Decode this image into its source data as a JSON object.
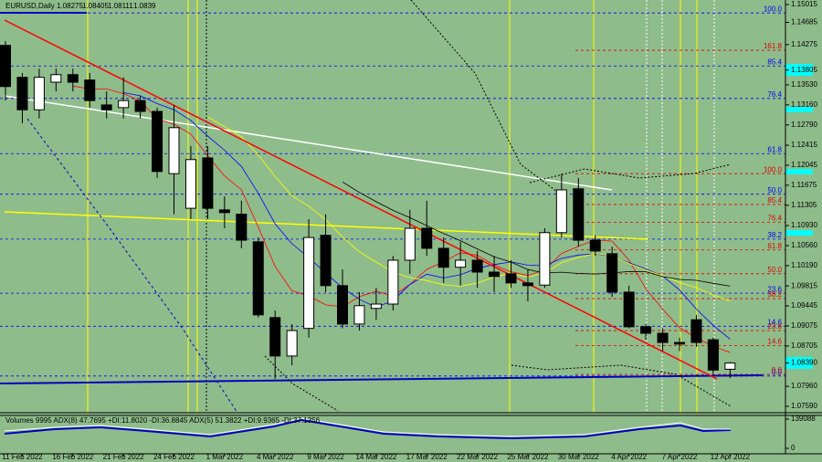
{
  "chart_data": [
    {
      "type": "candlestick",
      "title": "EURUSD,Daily",
      "categories": [
        null,
        "11 Feb 2022",
        null,
        null,
        "16 Feb 2022",
        null,
        null,
        "21 Feb 2022",
        null,
        null,
        "24 Feb 2022",
        null,
        null,
        "1 Mar 2022",
        null,
        null,
        "4 Mar 2022",
        null,
        null,
        "9 Mar 2022",
        null,
        null,
        "14 Mar 2022",
        null,
        null,
        "17 Mar 2022",
        null,
        null,
        "22 Mar 2022",
        null,
        null,
        "25 Mar 2022",
        null,
        null,
        "30 Mar 2022",
        null,
        null,
        "4 Apr 2022",
        null,
        null,
        "7 Apr 2022",
        null,
        null,
        "12 Apr 2022"
      ],
      "open": [
        1.1426,
        1.1367,
        1.1307,
        1.1358,
        1.1372,
        1.1362,
        1.1316,
        1.1311,
        1.1324,
        1.1304,
        1.1189,
        1.1125,
        1.1218,
        1.1122,
        1.1114,
        1.1063,
        1.0923,
        1.0852,
        1.0903,
        1.1075,
        1.0982,
        1.0911,
        1.094,
        1.0948,
        1.1029,
        1.1088,
        1.1051,
        1.1016,
        1.1029,
        1.1007,
        1.1004,
        1.0987,
        1.0983,
        1.108,
        1.1161,
        1.1066,
        1.1041,
        1.097,
        1.0906,
        1.0894,
        1.0877,
        1.0919,
        1.0882,
        1.08275
      ],
      "high": [
        1.1434,
        1.1375,
        1.1383,
        1.1383,
        1.1383,
        1.1375,
        1.1341,
        1.1367,
        1.1333,
        1.1311,
        1.1316,
        1.124,
        1.124,
        1.1147,
        1.1139,
        1.1071,
        1.0936,
        1.0911,
        1.1105,
        1.1114,
        1.1012,
        1.097,
        1.0978,
        1.1037,
        1.1122,
        1.1139,
        1.1071,
        1.1063,
        1.1046,
        1.1037,
        1.1029,
        1.1012,
        1.1088,
        1.1189,
        1.1181,
        1.1075,
        1.1054,
        1.0982,
        1.0911,
        1.0903,
        1.0886,
        1.0928,
        1.0886,
        1.08405
      ],
      "low": [
        1.1324,
        1.1282,
        1.1291,
        1.1341,
        1.1341,
        1.1311,
        1.1291,
        1.1291,
        1.1291,
        1.1181,
        1.1114,
        1.1105,
        1.1105,
        1.1088,
        1.1051,
        1.0923,
        1.081,
        1.0835,
        1.0886,
        1.097,
        1.0903,
        1.0899,
        1.0919,
        1.0936,
        1.1004,
        1.1037,
        1.0987,
        1.0982,
        1.0978,
        1.097,
        1.0978,
        1.0953,
        1.0978,
        1.1071,
        1.1054,
        1.1037,
        1.0961,
        1.0903,
        1.0882,
        1.0861,
        1.0861,
        1.0869,
        1.0818,
        1.08111
      ],
      "close": [
        1.135,
        1.1307,
        1.1367,
        1.1372,
        1.1358,
        1.1324,
        1.1307,
        1.1324,
        1.1304,
        1.1193,
        1.1274,
        1.1215,
        1.1125,
        1.1117,
        1.1066,
        1.0928,
        1.0852,
        1.0899,
        1.1071,
        1.0982,
        1.0911,
        1.0945,
        1.0948,
        1.1029,
        1.1088,
        1.1051,
        1.1016,
        1.1029,
        1.1007,
        1.0999,
        1.0987,
        1.0982,
        1.108,
        1.1159,
        1.1066,
        1.1046,
        1.097,
        1.0906,
        1.0894,
        1.0877,
        1.0874,
        1.0877,
        1.0826,
        1.0839
      ],
      "ylim": [
        1.07472,
        1.15099
      ],
      "yticks": [
        1.15015,
        1.14685,
        1.14275,
        1.13805,
        {
          "value": 1.1353,
          "label": "1.13530"
        },
        {
          "value": 1.1316,
          "label": "1.13160"
        },
        {
          "value": 1.1279,
          "label": "1.12790"
        },
        1.12415,
        1.12045,
        1.11675,
        1.11305,
        {
          "value": 1.1093,
          "label": "1.10930"
        },
        {
          "value": 1.1056,
          "label": "1.10560"
        },
        {
          "value": 1.1019,
          "label": "1.10190"
        },
        1.09815,
        1.09445,
        1.09075,
        1.08705,
        {
          "value": 1.0839,
          "label": "1.08390"
        },
        {
          "value": 1.0796,
          "label": "1.07960"
        },
        {
          "value": 1.0759,
          "label": "1.07590"
        }
      ],
      "fib_levels": [
        {
          "color": "#0000ff",
          "levels": [
            {
              "label": "100.0",
              "value": 1.1486
            },
            {
              "label": "85.4",
              "value": 1.1388
            },
            {
              "label": "76.4",
              "value": 1.1328
            },
            {
              "label": "61.8",
              "value": 1.1226
            },
            {
              "label": "50.0",
              "value": 1.1151
            },
            {
              "label": "38.2",
              "value": 1.1068
            },
            {
              "label": "23.6",
              "value": 1.0968
            },
            {
              "label": "14.6",
              "value": 1.0907
            },
            {
              "label": "0.0",
              "value": 1.0815
            }
          ]
        },
        {
          "color": "#e00000",
          "levels": [
            {
              "label": "161.8",
              "value": 1.1417
            },
            {
              "label": "100.0",
              "value": 1.1189
            },
            {
              "label": "85.4",
              "value": 1.1132
            },
            {
              "label": "76.4",
              "value": 1.1099
            },
            {
              "label": "61.8",
              "value": 1.1048
            },
            {
              "label": "50.0",
              "value": 1.1004
            },
            {
              "label": "38.2",
              "value": 1.0958
            },
            {
              "label": "23.6",
              "value": 1.0899
            },
            {
              "label": "14.6",
              "value": 1.0871
            },
            {
              "label": "0.0",
              "value": 1.0818
            }
          ]
        }
      ]
    },
    {
      "type": "indicator",
      "title": "Volumes 9995  ADX(8) 47.7695 +DI:11.8020 -DI:36.8845  ADX(5) 51.3822 +DI:9.9365 -DI:37.1356",
      "ylim": [
        0,
        139088
      ],
      "yticks": [
        139088,
        0
      ]
    }
  ]
}
